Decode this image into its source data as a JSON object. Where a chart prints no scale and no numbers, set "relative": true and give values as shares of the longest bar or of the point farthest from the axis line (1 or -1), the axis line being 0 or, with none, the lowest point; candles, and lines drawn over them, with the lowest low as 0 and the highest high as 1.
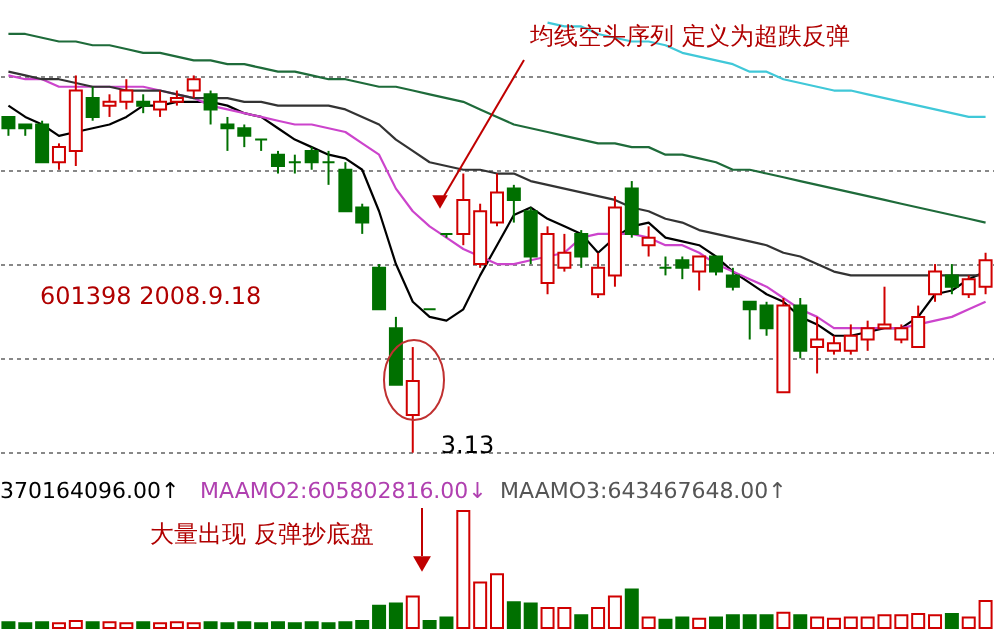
{
  "chart_data": [
    {
      "type": "candlestick",
      "relative": true,
      "grid": "y",
      "categories": [
        null,
        null,
        null,
        null,
        null,
        null,
        null,
        null,
        null,
        null,
        null,
        null,
        null,
        null,
        null,
        null,
        null,
        null,
        null,
        null,
        null,
        null,
        null,
        null,
        null,
        null,
        null,
        null,
        null,
        null,
        null,
        null,
        null,
        null,
        null,
        null,
        null,
        null,
        null,
        null,
        null,
        null,
        null,
        null,
        null,
        null,
        null,
        null,
        null,
        null,
        null,
        null,
        null,
        null,
        null,
        null,
        null,
        null,
        null
      ],
      "ohlc": [
        [
          0.89,
          0.89,
          0.84,
          0.86
        ],
        [
          0.87,
          0.87,
          0.84,
          0.86
        ],
        [
          0.87,
          0.88,
          0.77,
          0.77
        ],
        [
          0.77,
          0.82,
          0.75,
          0.81
        ],
        [
          0.8,
          1.0,
          0.76,
          0.96
        ],
        [
          0.94,
          0.97,
          0.88,
          0.89
        ],
        [
          0.92,
          0.95,
          0.89,
          0.93
        ],
        [
          0.93,
          0.99,
          0.91,
          0.96
        ],
        [
          0.93,
          0.95,
          0.9,
          0.92
        ],
        [
          0.91,
          0.96,
          0.89,
          0.93
        ],
        [
          0.93,
          0.96,
          0.92,
          0.94
        ],
        [
          0.96,
          1.0,
          0.94,
          0.99
        ],
        [
          0.95,
          0.96,
          0.87,
          0.91
        ],
        [
          0.87,
          0.89,
          0.8,
          0.86
        ],
        [
          0.86,
          0.87,
          0.81,
          0.84
        ],
        [
          0.83,
          0.83,
          0.8,
          0.83
        ],
        [
          0.79,
          0.8,
          0.74,
          0.76
        ],
        [
          0.77,
          0.79,
          0.74,
          0.77
        ],
        [
          0.8,
          0.81,
          0.75,
          0.77
        ],
        [
          0.77,
          0.8,
          0.71,
          0.77
        ],
        [
          0.75,
          0.77,
          0.64,
          0.64
        ],
        [
          0.65,
          0.66,
          0.58,
          0.61
        ],
        [
          0.49,
          0.5,
          0.38,
          0.38
        ],
        [
          0.33,
          0.36,
          0.18,
          0.18
        ],
        [
          0.1,
          0.28,
          0,
          0.19
        ],
        [
          0.38,
          0.38,
          0.38,
          0.38
        ],
        [
          0.58,
          0.58,
          0.57,
          0.58
        ],
        [
          0.58,
          0.74,
          0.55,
          0.67
        ],
        [
          0.5,
          0.66,
          0.49,
          0.64
        ],
        [
          0.61,
          0.74,
          0.6,
          0.69
        ],
        [
          0.7,
          0.71,
          0.61,
          0.67
        ],
        [
          0.64,
          0.65,
          0.5,
          0.52
        ],
        [
          0.45,
          0.6,
          0.42,
          0.58
        ],
        [
          0.49,
          0.58,
          0.48,
          0.53
        ],
        [
          0.58,
          0.59,
          0.49,
          0.52
        ],
        [
          0.42,
          0.53,
          0.41,
          0.49
        ],
        [
          0.47,
          0.68,
          0.44,
          0.65
        ],
        [
          0.7,
          0.72,
          0.57,
          0.58
        ],
        [
          0.55,
          0.6,
          0.52,
          0.57
        ],
        [
          0.49,
          0.52,
          0.47,
          0.49
        ],
        [
          0.51,
          0.52,
          0.46,
          0.49
        ],
        [
          0.48,
          0.52,
          0.43,
          0.52
        ],
        [
          0.52,
          0.52,
          0.47,
          0.48
        ],
        [
          0.47,
          0.49,
          0.43,
          0.44
        ],
        [
          0.4,
          0.4,
          0.3,
          0.38
        ],
        [
          0.39,
          0.4,
          0.31,
          0.33
        ],
        [
          0.16,
          0.41,
          0.16,
          0.39
        ],
        [
          0.39,
          0.41,
          0.25,
          0.27
        ],
        [
          0.28,
          0.36,
          0.21,
          0.3
        ],
        [
          0.27,
          0.31,
          0.26,
          0.29
        ],
        [
          0.27,
          0.34,
          0.26,
          0.31
        ],
        [
          0.3,
          0.35,
          0.27,
          0.33
        ],
        [
          0.33,
          0.44,
          0.33,
          0.34
        ],
        [
          0.3,
          0.34,
          0.29,
          0.33
        ],
        [
          0.28,
          0.39,
          0.28,
          0.36
        ],
        [
          0.42,
          0.5,
          0.4,
          0.48
        ],
        [
          0.47,
          0.5,
          0.42,
          0.44
        ],
        [
          0.42,
          0.47,
          0.41,
          0.46
        ],
        [
          0.44,
          0.53,
          0.42,
          0.51
        ]
      ],
      "colors": [
        "#007000",
        "#007000",
        "#007000",
        "#d00000",
        "#d00000",
        "#007000",
        "#d00000",
        "#d00000",
        "#007000",
        "#d00000",
        "#d00000",
        "#d00000",
        "#007000",
        "#007000",
        "#007000",
        "#007000",
        "#007000",
        "#007000",
        "#007000",
        "#007000",
        "#007000",
        "#007000",
        "#007000",
        "#007000",
        "#d00000",
        "#007000",
        "#007000",
        "#d00000",
        "#d00000",
        "#d00000",
        "#007000",
        "#007000",
        "#d00000",
        "#d00000",
        "#007000",
        "#d00000",
        "#d00000",
        "#007000",
        "#d00000",
        "#007000",
        "#007000",
        "#d00000",
        "#007000",
        "#007000",
        "#007000",
        "#007000",
        "#d00000",
        "#007000",
        "#d00000",
        "#d00000",
        "#d00000",
        "#d00000",
        "#d00000",
        "#d00000",
        "#d00000",
        "#d00000",
        "#007000",
        "#d00000",
        "#d00000"
      ],
      "series": [
        {
          "type": "line",
          "color": "#000000",
          "values": [
            0.92,
            0.89,
            0.87,
            0.84,
            0.85,
            0.86,
            0.87,
            0.89,
            0.92,
            0.92,
            0.93,
            0.93,
            0.93,
            0.92,
            0.9,
            0.89,
            0.86,
            0.83,
            0.81,
            0.79,
            0.78,
            0.75,
            0.64,
            0.5,
            0.4,
            0.36,
            0.35,
            0.38,
            0.47,
            0.55,
            0.63,
            0.65,
            0.62,
            0.6,
            0.58,
            0.53,
            0.57,
            0.6,
            0.61,
            0.57,
            0.56,
            0.55,
            0.52,
            0.48,
            0.45,
            0.42,
            0.4,
            0.36,
            0.34,
            0.31,
            0.31,
            0.32,
            0.33,
            0.33,
            0.36,
            0.42,
            0.43,
            0.46,
            0.48
          ]
        },
        {
          "type": "line",
          "color": "#cc44cc",
          "values": [
            1.0,
            0.99,
            0.99,
            0.97,
            0.97,
            0.97,
            0.97,
            0.97,
            0.97,
            0.96,
            0.95,
            0.94,
            0.92,
            0.91,
            0.9,
            0.89,
            0.88,
            0.87,
            0.87,
            0.86,
            0.85,
            0.82,
            0.79,
            0.7,
            0.64,
            0.6,
            0.57,
            0.54,
            0.52,
            0.5,
            0.5,
            0.51,
            0.52,
            0.53,
            0.57,
            0.58,
            0.58,
            0.58,
            0.57,
            0.55,
            0.55,
            0.53,
            0.5,
            0.48,
            0.46,
            0.44,
            0.41,
            0.38,
            0.36,
            0.33,
            0.33,
            0.33,
            0.33,
            0.33,
            0.34,
            0.35,
            0.36,
            0.38,
            0.4
          ]
        },
        {
          "type": "line",
          "color": "#333333",
          "values": [
            1.01,
            1.0,
            0.99,
            0.99,
            0.98,
            0.97,
            0.97,
            0.96,
            0.96,
            0.96,
            0.95,
            0.94,
            0.94,
            0.94,
            0.93,
            0.93,
            0.92,
            0.92,
            0.92,
            0.92,
            0.91,
            0.89,
            0.87,
            0.83,
            0.8,
            0.77,
            0.76,
            0.75,
            0.75,
            0.74,
            0.74,
            0.72,
            0.71,
            0.7,
            0.69,
            0.68,
            0.67,
            0.65,
            0.64,
            0.62,
            0.61,
            0.59,
            0.58,
            0.57,
            0.56,
            0.55,
            0.53,
            0.52,
            0.5,
            0.48,
            0.47,
            0.47,
            0.47,
            0.47,
            0.47,
            0.47,
            0.47,
            0.47,
            0.47
          ]
        },
        {
          "type": "line",
          "color": "#1e6b3a",
          "values": [
            1.11,
            1.11,
            1.1,
            1.09,
            1.09,
            1.08,
            1.08,
            1.07,
            1.06,
            1.06,
            1.05,
            1.04,
            1.04,
            1.03,
            1.03,
            1.02,
            1.01,
            1.01,
            1.0,
            0.99,
            0.99,
            0.98,
            0.97,
            0.97,
            0.96,
            0.95,
            0.94,
            0.93,
            0.91,
            0.89,
            0.87,
            0.86,
            0.85,
            0.84,
            0.83,
            0.82,
            0.82,
            0.81,
            0.81,
            0.79,
            0.79,
            0.78,
            0.77,
            0.75,
            0.75,
            0.74,
            0.73,
            0.72,
            0.71,
            0.7,
            0.69,
            0.68,
            0.67,
            0.66,
            0.65,
            0.64,
            0.63,
            0.62,
            0.61
          ]
        },
        {
          "type": "line",
          "color": "#40c8d8",
          "values": [
            null,
            null,
            null,
            null,
            null,
            null,
            null,
            null,
            null,
            null,
            null,
            null,
            null,
            null,
            null,
            null,
            null,
            null,
            null,
            null,
            null,
            null,
            null,
            null,
            null,
            null,
            null,
            null,
            null,
            null,
            null,
            null,
            1.14,
            1.13,
            1.13,
            1.11,
            1.1,
            1.09,
            1.09,
            1.08,
            1.06,
            1.05,
            1.04,
            1.03,
            1.01,
            1.01,
            0.99,
            0.98,
            0.97,
            0.96,
            0.96,
            0.95,
            0.94,
            0.93,
            0.92,
            0.91,
            0.9,
            0.89,
            0.89
          ]
        }
      ],
      "annotations": [
        "均线空头序列  定义为超跌反弹",
        "601398  2008.9.18",
        "3.13"
      ]
    },
    {
      "type": "bar",
      "relative": true,
      "categories": [
        null,
        null,
        null,
        null,
        null,
        null,
        null,
        null,
        null,
        null,
        null,
        null,
        null,
        null,
        null,
        null,
        null,
        null,
        null,
        null,
        null,
        null,
        null,
        null,
        null,
        null,
        null,
        null,
        null,
        null,
        null,
        null,
        null,
        null,
        null,
        null,
        null,
        null,
        null,
        null,
        null,
        null,
        null,
        null,
        null,
        null,
        null,
        null,
        null,
        null,
        null,
        null,
        null,
        null,
        null,
        null,
        null,
        null,
        null
      ],
      "values": [
        0.05,
        0.04,
        0.05,
        0.04,
        0.06,
        0.05,
        0.05,
        0.04,
        0.05,
        0.04,
        0.05,
        0.04,
        0.05,
        0.04,
        0.05,
        0.04,
        0.05,
        0.04,
        0.05,
        0.04,
        0.05,
        0.06,
        0.19,
        0.21,
        0.27,
        0.06,
        0.09,
        1.0,
        0.39,
        0.46,
        0.22,
        0.21,
        0.17,
        0.17,
        0.11,
        0.17,
        0.27,
        0.33,
        0.09,
        0.07,
        0.09,
        0.08,
        0.09,
        0.11,
        0.11,
        0.11,
        0.13,
        0.11,
        0.09,
        0.08,
        0.09,
        0.09,
        0.11,
        0.11,
        0.12,
        0.11,
        0.12,
        0.09,
        0.23
      ],
      "colors": [
        "#007000",
        "#007000",
        "#007000",
        "#d00000",
        "#d00000",
        "#007000",
        "#d00000",
        "#d00000",
        "#007000",
        "#d00000",
        "#d00000",
        "#d00000",
        "#007000",
        "#007000",
        "#007000",
        "#007000",
        "#007000",
        "#007000",
        "#007000",
        "#007000",
        "#007000",
        "#007000",
        "#007000",
        "#007000",
        "#d00000",
        "#007000",
        "#007000",
        "#d00000",
        "#d00000",
        "#d00000",
        "#007000",
        "#007000",
        "#d00000",
        "#d00000",
        "#007000",
        "#d00000",
        "#d00000",
        "#007000",
        "#d00000",
        "#007000",
        "#007000",
        "#d00000",
        "#007000",
        "#007000",
        "#007000",
        "#007000",
        "#d00000",
        "#007000",
        "#d00000",
        "#d00000",
        "#d00000",
        "#d00000",
        "#d00000",
        "#d00000",
        "#d00000",
        "#d00000",
        "#007000",
        "#d00000",
        "#d00000"
      ],
      "annotations": [
        "370164096.00↑",
        "MAAMO2:605802816.00↓",
        "MAAMO3:643467648.00↑",
        "大量出现  反弹抄底盘"
      ]
    }
  ]
}
